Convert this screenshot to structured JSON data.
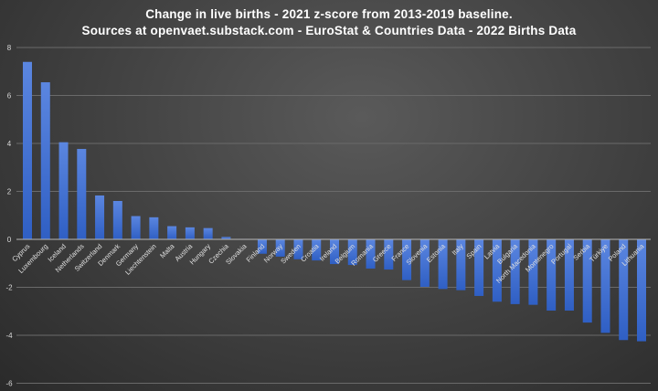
{
  "chart_data": {
    "type": "bar",
    "title": "Change in live births - 2021 z-score from 2013-2019 baseline.",
    "subtitle": "Sources at openvaet.substack.com - EuroStat & Countries Data - 2022 Births Data",
    "xlabel": "",
    "ylabel": "",
    "ylim": [
      -6,
      8
    ],
    "yticks": [
      -6,
      -4,
      -2,
      0,
      2,
      4,
      6,
      8
    ],
    "grid": true,
    "bar_color": "#3f6fd6",
    "categories": [
      "Cyprus",
      "Luxembourg",
      "Iceland",
      "Netherlands",
      "Switzerland",
      "Denmark",
      "Germany",
      "Liechtenstein",
      "Malta",
      "Austria",
      "Hungary",
      "Czechia",
      "Slovakia",
      "Finland",
      "Norway",
      "Sweden",
      "Croatia",
      "Ireland",
      "Belgium",
      "Romania",
      "Greece",
      "France",
      "Slovenia",
      "Estonia",
      "Italy",
      "Spain",
      "Latvia",
      "Bulgaria",
      "North Macedonia",
      "Montenegro",
      "Portugal",
      "Serbia",
      "Türkiye",
      "Poland",
      "Lithuania"
    ],
    "values": [
      7.4,
      6.55,
      4.05,
      3.77,
      1.83,
      1.6,
      0.97,
      0.92,
      0.55,
      0.5,
      0.47,
      0.1,
      0.02,
      -0.6,
      -0.72,
      -0.83,
      -0.88,
      -1.03,
      -1.07,
      -1.22,
      -1.26,
      -1.7,
      -1.98,
      -2.07,
      -2.12,
      -2.36,
      -2.6,
      -2.7,
      -2.73,
      -2.97,
      -2.97,
      -3.47,
      -3.9,
      -4.2,
      -4.25
    ]
  }
}
